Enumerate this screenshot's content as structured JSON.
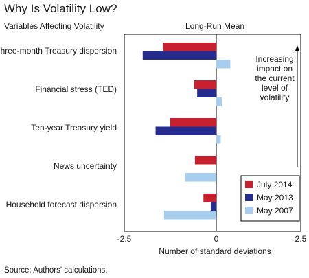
{
  "header": {
    "title": "Why Is Volatility Low?",
    "subtitle": "Variables Affecting Volatility",
    "center_label": "Long-Run Mean"
  },
  "footer": {
    "source": "Source: Authors' calculations."
  },
  "annotation": [
    "Increasing",
    "impact on",
    "the current",
    "level of",
    "volatility"
  ],
  "colors": {
    "July 2014": "#c8202f",
    "May 2013": "#262b8e",
    "May 2007": "#a7cdef"
  },
  "chart_data": {
    "type": "bar",
    "orientation": "horizontal",
    "categories": [
      "Three-month Treasury dispersion",
      "Financial stress (TED)",
      "Ten-year Treasury yield",
      "News uncertainty",
      "Household forecast dispersion"
    ],
    "series": [
      {
        "name": "July 2014",
        "values": [
          -1.45,
          -0.6,
          -1.25,
          -0.58,
          -0.35
        ]
      },
      {
        "name": "May 2013",
        "values": [
          -2.0,
          -0.52,
          -1.65,
          0.0,
          -0.15
        ]
      },
      {
        "name": "May 2007",
        "values": [
          0.38,
          0.15,
          0.12,
          -0.85,
          -1.42
        ]
      }
    ],
    "xlabel": "Number of standard deviations",
    "xlim": [
      -2.5,
      2.5
    ],
    "xticks": [
      "-2.5",
      "0",
      "2.5"
    ],
    "legend": "bottom-right",
    "grid": false
  }
}
